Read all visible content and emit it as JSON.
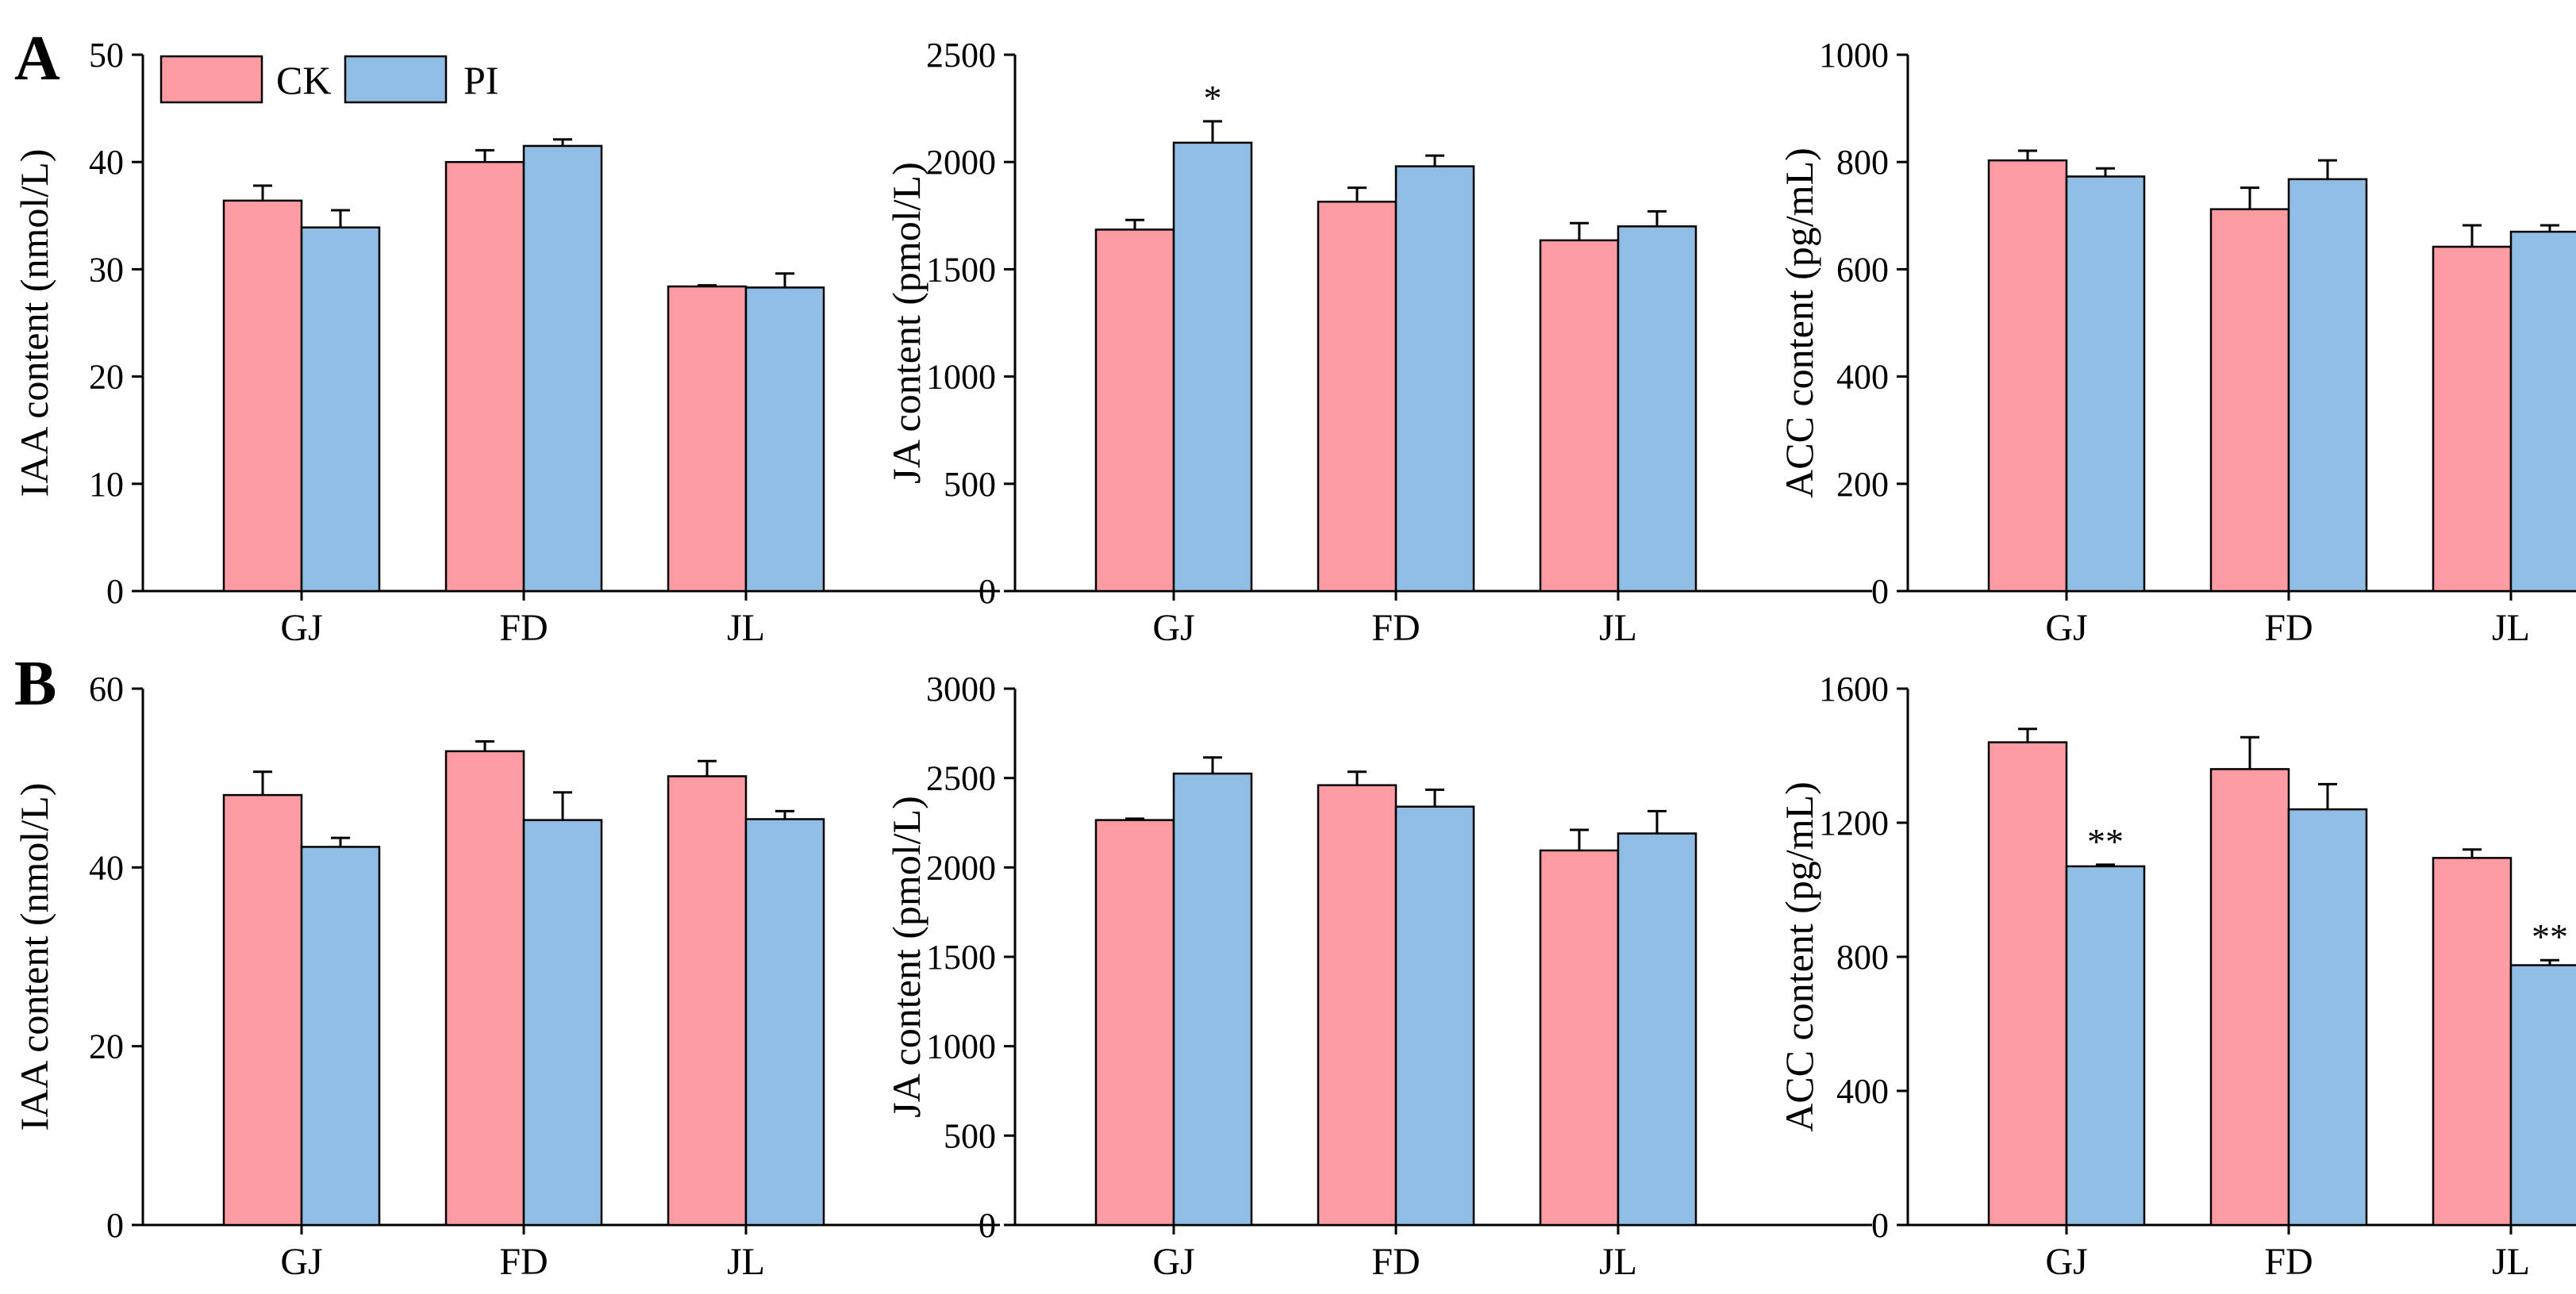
{
  "legend": {
    "ck_label": "CK",
    "pi_label": "PI"
  },
  "colors": {
    "ck": "#fc9ba2",
    "pi": "#8fbde3",
    "axis": "#000000"
  },
  "row_labels": [
    "A",
    "B"
  ],
  "chart_data": [
    {
      "type": "bar",
      "row": "A",
      "col": 0,
      "categories": [
        "GJ",
        "FD",
        "JL"
      ],
      "ylabel": "IAA content (nmol/L)",
      "ylim": [
        0,
        50
      ],
      "yticks": [
        0,
        10,
        20,
        30,
        40,
        50
      ],
      "series": [
        {
          "name": "CK",
          "values": [
            36.4,
            40.0,
            28.4
          ],
          "errors": [
            1.4,
            1.1,
            0.1
          ],
          "sig": [
            "",
            "",
            ""
          ]
        },
        {
          "name": "PI",
          "values": [
            33.9,
            41.5,
            28.3
          ],
          "errors": [
            1.6,
            0.6,
            1.3
          ],
          "sig": [
            "",
            "",
            ""
          ]
        }
      ],
      "show_legend": true
    },
    {
      "type": "bar",
      "row": "A",
      "col": 1,
      "categories": [
        "GJ",
        "FD",
        "JL"
      ],
      "ylabel": "JA content (pmol/L)",
      "ylim": [
        0,
        2500
      ],
      "yticks": [
        0,
        500,
        1000,
        1500,
        2000,
        2500
      ],
      "series": [
        {
          "name": "CK",
          "values": [
            1685,
            1815,
            1635
          ],
          "errors": [
            45,
            65,
            80
          ],
          "sig": [
            "",
            "",
            ""
          ]
        },
        {
          "name": "PI",
          "values": [
            2090,
            1980,
            1700
          ],
          "errors": [
            100,
            50,
            70
          ],
          "sig": [
            "*",
            "",
            ""
          ]
        }
      ]
    },
    {
      "type": "bar",
      "row": "A",
      "col": 2,
      "categories": [
        "GJ",
        "FD",
        "JL"
      ],
      "ylabel": "ACC content (pg/mL)",
      "ylim": [
        0,
        1000
      ],
      "yticks": [
        0,
        200,
        400,
        600,
        800,
        1000
      ],
      "series": [
        {
          "name": "CK",
          "values": [
            803,
            712,
            642
          ],
          "errors": [
            18,
            40,
            40
          ],
          "sig": [
            "",
            "",
            ""
          ]
        },
        {
          "name": "PI",
          "values": [
            773,
            768,
            670
          ],
          "errors": [
            15,
            35,
            12
          ],
          "sig": [
            "",
            "",
            ""
          ]
        }
      ]
    },
    {
      "type": "bar",
      "row": "B",
      "col": 0,
      "categories": [
        "GJ",
        "FD",
        "JL"
      ],
      "ylabel": "IAA content (nmol/L)",
      "ylim": [
        0,
        60
      ],
      "yticks": [
        0,
        20,
        40,
        60
      ],
      "series": [
        {
          "name": "CK",
          "values": [
            48.1,
            53.0,
            50.2
          ],
          "errors": [
            2.6,
            1.1,
            1.7
          ],
          "sig": [
            "",
            "",
            ""
          ]
        },
        {
          "name": "PI",
          "values": [
            42.3,
            45.3,
            45.4
          ],
          "errors": [
            1.0,
            3.1,
            0.9
          ],
          "sig": [
            "",
            "",
            ""
          ]
        }
      ]
    },
    {
      "type": "bar",
      "row": "B",
      "col": 1,
      "categories": [
        "GJ",
        "FD",
        "JL"
      ],
      "ylabel": "JA content (pmol/L)",
      "ylim": [
        0,
        3000
      ],
      "yticks": [
        0,
        500,
        1000,
        1500,
        2000,
        2500,
        3000
      ],
      "series": [
        {
          "name": "CK",
          "values": [
            2265,
            2460,
            2095
          ],
          "errors": [
            8,
            75,
            115
          ],
          "sig": [
            "",
            "",
            ""
          ]
        },
        {
          "name": "PI",
          "values": [
            2525,
            2340,
            2190
          ],
          "errors": [
            90,
            95,
            125
          ],
          "sig": [
            "",
            "",
            ""
          ]
        }
      ]
    },
    {
      "type": "bar",
      "row": "B",
      "col": 2,
      "categories": [
        "GJ",
        "FD",
        "JL"
      ],
      "ylabel": "ACC content (pg/mL)",
      "ylim": [
        0,
        1600
      ],
      "yticks": [
        0,
        400,
        800,
        1200,
        1600
      ],
      "series": [
        {
          "name": "CK",
          "values": [
            1440,
            1360,
            1095
          ],
          "errors": [
            40,
            95,
            25
          ],
          "sig": [
            "",
            "",
            ""
          ]
        },
        {
          "name": "PI",
          "values": [
            1070,
            1240,
            775
          ],
          "errors": [
            5,
            75,
            15
          ],
          "sig": [
            "**",
            "",
            "**"
          ]
        }
      ]
    }
  ]
}
